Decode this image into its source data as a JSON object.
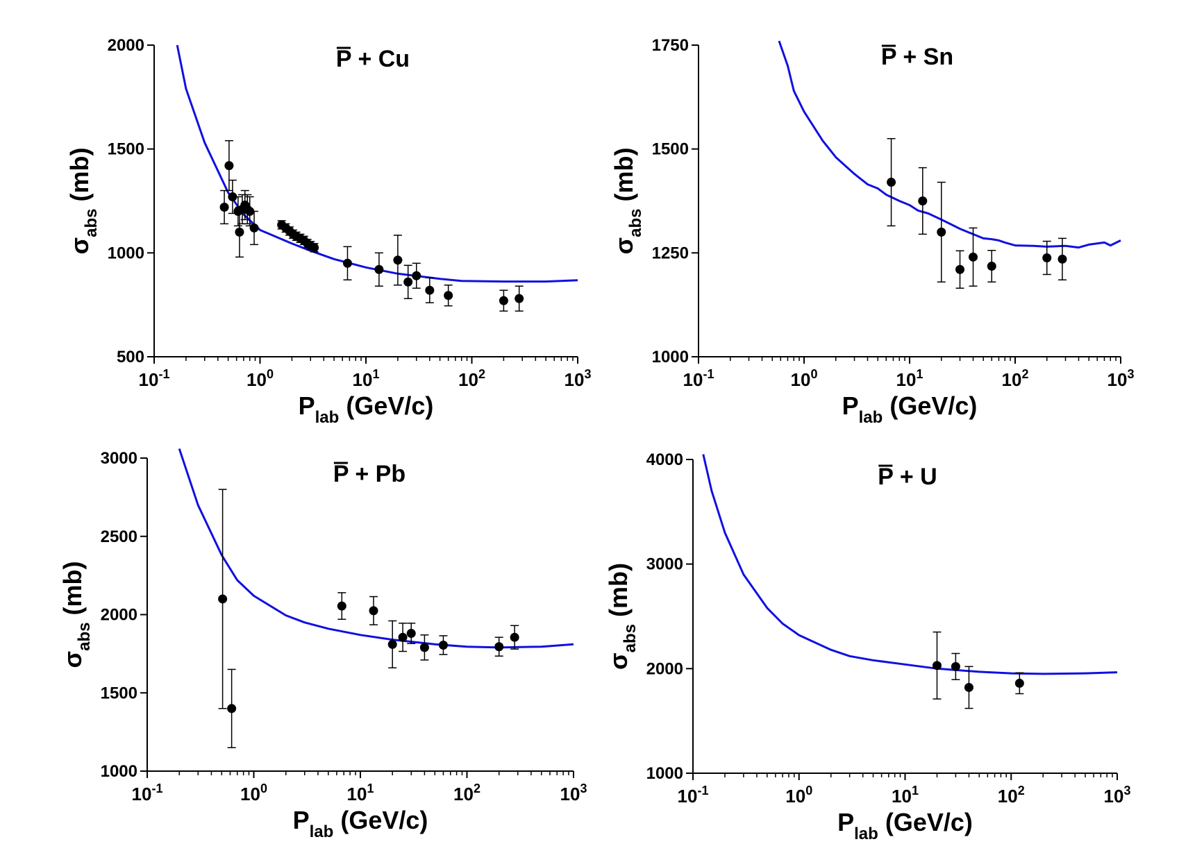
{
  "chart_data": [
    {
      "type": "scatter",
      "title_prefix": "P",
      "title_suffix": " + Cu",
      "xlabel_main": "P",
      "xlabel_sub": "lab",
      "xlabel_rest": " (GeV/c)",
      "ylabel_main": "σ",
      "ylabel_sub": "abs",
      "ylabel_rest": " (mb)",
      "x_scale": "log",
      "xlim": [
        0.1,
        1000
      ],
      "ylim": [
        500,
        2000
      ],
      "yticks": [
        500,
        1000,
        1500,
        2000
      ],
      "xtick_labels": [
        {
          "base": "10",
          "exp": "-1"
        },
        {
          "base": "10",
          "exp": "0"
        },
        {
          "base": "10",
          "exp": "1"
        },
        {
          "base": "10",
          "exp": "2"
        },
        {
          "base": "10",
          "exp": "3"
        }
      ],
      "curve_color": "#1010e0",
      "curve": {
        "x": [
          0.165,
          0.2,
          0.3,
          0.5,
          0.7,
          1.0,
          2.0,
          3.0,
          5.0,
          10,
          20,
          50,
          80,
          200,
          500,
          1000
        ],
        "y": [
          2000,
          1790,
          1530,
          1290,
          1185,
          1110,
          1045,
          1010,
          970,
          930,
          900,
          875,
          865,
          862,
          862,
          868
        ]
      },
      "points": [
        {
          "x": 0.46,
          "y": 1220,
          "err": 80
        },
        {
          "x": 0.51,
          "y": 1420,
          "err": 120
        },
        {
          "x": 0.55,
          "y": 1270,
          "err": 80
        },
        {
          "x": 0.62,
          "y": 1200,
          "err": 70
        },
        {
          "x": 0.64,
          "y": 1100,
          "err": 120
        },
        {
          "x": 0.68,
          "y": 1210,
          "err": 70
        },
        {
          "x": 0.72,
          "y": 1230,
          "err": 70
        },
        {
          "x": 0.76,
          "y": 1210,
          "err": 70
        },
        {
          "x": 0.8,
          "y": 1200,
          "err": 70
        },
        {
          "x": 0.88,
          "y": 1120,
          "err": 80
        },
        {
          "x": 1.6,
          "y": 1135,
          "err": 20
        },
        {
          "x": 1.75,
          "y": 1120,
          "err": 20
        },
        {
          "x": 1.9,
          "y": 1105,
          "err": 20
        },
        {
          "x": 2.05,
          "y": 1090,
          "err": 20
        },
        {
          "x": 2.2,
          "y": 1080,
          "err": 20
        },
        {
          "x": 2.4,
          "y": 1070,
          "err": 20
        },
        {
          "x": 2.6,
          "y": 1060,
          "err": 20
        },
        {
          "x": 2.8,
          "y": 1045,
          "err": 20
        },
        {
          "x": 3.0,
          "y": 1035,
          "err": 20
        },
        {
          "x": 3.25,
          "y": 1025,
          "err": 20
        },
        {
          "x": 6.7,
          "y": 950,
          "err": 80
        },
        {
          "x": 13.3,
          "y": 920,
          "err": 80
        },
        {
          "x": 20,
          "y": 965,
          "err": 120
        },
        {
          "x": 25,
          "y": 860,
          "err": 80
        },
        {
          "x": 30,
          "y": 890,
          "err": 60
        },
        {
          "x": 40,
          "y": 820,
          "err": 60
        },
        {
          "x": 60,
          "y": 795,
          "err": 50
        },
        {
          "x": 200,
          "y": 770,
          "err": 50
        },
        {
          "x": 280,
          "y": 780,
          "err": 60
        }
      ]
    },
    {
      "type": "scatter",
      "title_prefix": "P",
      "title_suffix": " + Sn",
      "xlabel_main": "P",
      "xlabel_sub": "lab",
      "xlabel_rest": " (GeV/c)",
      "ylabel_main": "σ",
      "ylabel_sub": "abs",
      "ylabel_rest": " (mb)",
      "x_scale": "log",
      "xlim": [
        0.1,
        1000
      ],
      "ylim": [
        1000,
        1750
      ],
      "yticks": [
        1000,
        1250,
        1500,
        1750
      ],
      "xtick_labels": [
        {
          "base": "10",
          "exp": "-1"
        },
        {
          "base": "10",
          "exp": "0"
        },
        {
          "base": "10",
          "exp": "1"
        },
        {
          "base": "10",
          "exp": "2"
        },
        {
          "base": "10",
          "exp": "3"
        }
      ],
      "curve_color": "#1010e0",
      "curve": {
        "x": [
          0.58,
          0.7,
          0.8,
          1.0,
          1.5,
          2.0,
          3.0,
          4.0,
          5.0,
          6.0,
          8.0,
          10,
          12,
          15,
          20,
          25,
          30,
          40,
          50,
          60,
          70,
          80,
          100,
          150,
          200,
          300,
          400,
          500,
          700,
          800,
          1000
        ],
        "y": [
          1760,
          1700,
          1640,
          1590,
          1520,
          1480,
          1440,
          1415,
          1405,
          1390,
          1375,
          1365,
          1352,
          1345,
          1330,
          1318,
          1308,
          1295,
          1285,
          1283,
          1280,
          1275,
          1268,
          1267,
          1265,
          1267,
          1263,
          1270,
          1275,
          1268,
          1280
        ]
      },
      "points": [
        {
          "x": 6.7,
          "y": 1420,
          "err": 105
        },
        {
          "x": 13.3,
          "y": 1375,
          "err": 80
        },
        {
          "x": 20,
          "y": 1300,
          "err": 120
        },
        {
          "x": 30,
          "y": 1210,
          "err": 45
        },
        {
          "x": 40,
          "y": 1240,
          "err": 70
        },
        {
          "x": 60,
          "y": 1218,
          "err": 38
        },
        {
          "x": 200,
          "y": 1238,
          "err": 40
        },
        {
          "x": 280,
          "y": 1235,
          "err": 50
        }
      ]
    },
    {
      "type": "scatter",
      "title_prefix": "P",
      "title_suffix": " + Pb",
      "xlabel_main": "P",
      "xlabel_sub": "lab",
      "xlabel_rest": " (GeV/c)",
      "ylabel_main": "σ",
      "ylabel_sub": "abs",
      "ylabel_rest": " (mb)",
      "x_scale": "log",
      "xlim": [
        0.1,
        1000
      ],
      "ylim": [
        1000,
        3000
      ],
      "yticks": [
        1000,
        1500,
        2000,
        2500,
        3000
      ],
      "xtick_labels": [
        {
          "base": "10",
          "exp": "-1"
        },
        {
          "base": "10",
          "exp": "0"
        },
        {
          "base": "10",
          "exp": "1"
        },
        {
          "base": "10",
          "exp": "2"
        },
        {
          "base": "10",
          "exp": "3"
        }
      ],
      "curve_color": "#1010e0",
      "curve": {
        "x": [
          0.2,
          0.3,
          0.5,
          0.7,
          1.0,
          2.0,
          3.0,
          5.0,
          10,
          20,
          50,
          100,
          200,
          500,
          1000
        ],
        "y": [
          3060,
          2700,
          2380,
          2220,
          2120,
          1995,
          1950,
          1910,
          1870,
          1840,
          1810,
          1795,
          1790,
          1795,
          1810
        ]
      },
      "points": [
        {
          "x": 0.51,
          "y": 2100,
          "err": 700
        },
        {
          "x": 0.62,
          "y": 1400,
          "err": 250
        },
        {
          "x": 6.7,
          "y": 2055,
          "err": 85
        },
        {
          "x": 13.3,
          "y": 2025,
          "err": 90
        },
        {
          "x": 20,
          "y": 1810,
          "err": 150
        },
        {
          "x": 25,
          "y": 1855,
          "err": 90
        },
        {
          "x": 30,
          "y": 1880,
          "err": 65
        },
        {
          "x": 40,
          "y": 1790,
          "err": 80
        },
        {
          "x": 60,
          "y": 1805,
          "err": 60
        },
        {
          "x": 200,
          "y": 1795,
          "err": 60
        },
        {
          "x": 280,
          "y": 1855,
          "err": 75
        }
      ]
    },
    {
      "type": "scatter",
      "title_prefix": "P",
      "title_suffix": " + U",
      "xlabel_main": "P",
      "xlabel_sub": "lab",
      "xlabel_rest": " (GeV/c)",
      "ylabel_main": "σ",
      "ylabel_sub": "abs",
      "ylabel_rest": " (mb)",
      "x_scale": "log",
      "xlim": [
        0.1,
        1000
      ],
      "ylim": [
        1000,
        4000
      ],
      "yticks": [
        1000,
        2000,
        3000,
        4000
      ],
      "xtick_labels": [
        {
          "base": "10",
          "exp": "-1"
        },
        {
          "base": "10",
          "exp": "0"
        },
        {
          "base": "10",
          "exp": "1"
        },
        {
          "base": "10",
          "exp": "2"
        },
        {
          "base": "10",
          "exp": "3"
        }
      ],
      "curve_color": "#1010e0",
      "curve": {
        "x": [
          0.125,
          0.15,
          0.2,
          0.3,
          0.5,
          0.7,
          1.0,
          2.0,
          3.0,
          5.0,
          10,
          20,
          50,
          100,
          200,
          500,
          1000
        ],
        "y": [
          4050,
          3700,
          3300,
          2900,
          2580,
          2430,
          2320,
          2180,
          2120,
          2080,
          2040,
          2000,
          1970,
          1955,
          1950,
          1955,
          1965
        ]
      },
      "points": [
        {
          "x": 20,
          "y": 2030,
          "err": 320
        },
        {
          "x": 30,
          "y": 2020,
          "err": 125
        },
        {
          "x": 40,
          "y": 1820,
          "err": 200
        },
        {
          "x": 120,
          "y": 1860,
          "err": 100
        }
      ]
    }
  ]
}
